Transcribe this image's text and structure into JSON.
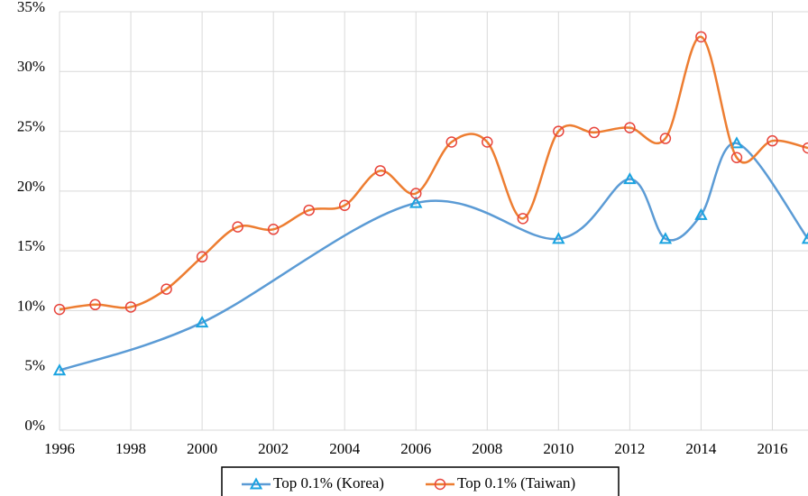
{
  "chart_data": {
    "type": "line",
    "ylim": [
      0,
      35
    ],
    "yticks": [
      {
        "value": 0,
        "label": "0%"
      },
      {
        "value": 5,
        "label": "5%"
      },
      {
        "value": 10,
        "label": "10%"
      },
      {
        "value": 15,
        "label": "15%"
      },
      {
        "value": 20,
        "label": "20%"
      },
      {
        "value": 25,
        "label": "25%"
      },
      {
        "value": 30,
        "label": "30%"
      },
      {
        "value": 35,
        "label": "35%"
      }
    ],
    "xlim": [
      1996,
      2017
    ],
    "xticks": [
      1996,
      1998,
      2000,
      2002,
      2004,
      2006,
      2008,
      2010,
      2012,
      2014,
      2016
    ],
    "grid": true,
    "legend": "bottom",
    "series": [
      {
        "name": "Top 0.1% (Korea)",
        "color": "#5b9bd5",
        "marker": "triangle",
        "marker_color": "#1aa3e0",
        "x": [
          1996,
          2000,
          2006,
          2010,
          2012,
          2013,
          2014,
          2015,
          2017
        ],
        "values": [
          5,
          9,
          19,
          16,
          21,
          16,
          18,
          24,
          16
        ]
      },
      {
        "name": "Top 0.1% (Taiwan)",
        "color": "#ed7d31",
        "marker": "circle",
        "marker_color": "#e8453c",
        "x": [
          1996,
          1997,
          1998,
          1999,
          2000,
          2001,
          2002,
          2003,
          2004,
          2005,
          2006,
          2007,
          2008,
          2009,
          2010,
          2011,
          2012,
          2013,
          2014,
          2015,
          2016,
          2017
        ],
        "values": [
          10.1,
          10.5,
          10.3,
          11.8,
          14.5,
          17.0,
          16.8,
          18.4,
          18.8,
          21.7,
          19.8,
          24.1,
          24.1,
          17.7,
          25.0,
          24.9,
          25.3,
          24.4,
          32.9,
          22.8,
          24.2,
          23.6
        ]
      }
    ]
  }
}
